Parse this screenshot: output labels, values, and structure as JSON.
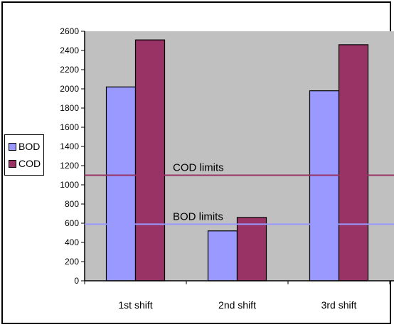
{
  "chart_data": {
    "type": "bar",
    "categories": [
      "1st shift",
      "2nd shift",
      "3rd shift"
    ],
    "series": [
      {
        "name": "BOD",
        "values": [
          2020,
          520,
          1980
        ],
        "color": "#9999ff"
      },
      {
        "name": "COD",
        "values": [
          2510,
          660,
          2460
        ],
        "color": "#993366"
      }
    ],
    "ylim": [
      0,
      2600
    ],
    "yticks": [
      0,
      200,
      400,
      600,
      800,
      1000,
      1200,
      1400,
      1600,
      1800,
      2000,
      2200,
      2400,
      2600
    ],
    "grid": false,
    "legend": "left",
    "reference_lines": [
      {
        "label": "COD limits",
        "value": 1100,
        "color": "#993366"
      },
      {
        "label": "BOD limits",
        "value": 590,
        "color": "#9999ff"
      }
    ],
    "plot_background": "#c0c0c0"
  }
}
